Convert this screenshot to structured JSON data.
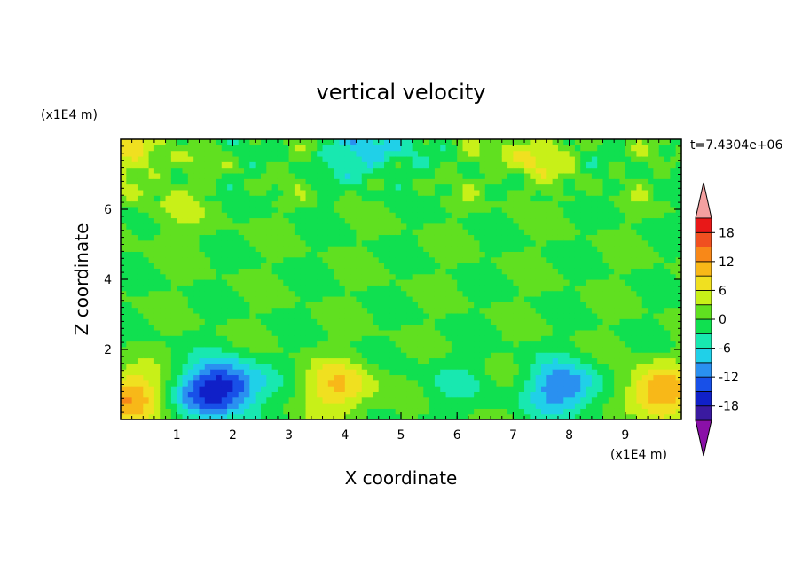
{
  "chart_data": {
    "type": "heatmap",
    "title": "vertical velocity",
    "xlabel": "X coordinate",
    "ylabel": "Z coordinate",
    "x_unit": "(x1E4 m)",
    "y_unit": "(x1E4 m)",
    "time_label": "t=7.4304e+06",
    "xlim": [
      0,
      10
    ],
    "ylim": [
      0,
      8
    ],
    "x_ticks": [
      1,
      2,
      3,
      4,
      5,
      6,
      7,
      8,
      9
    ],
    "y_ticks": [
      2,
      4,
      6
    ],
    "colorbar": {
      "levels": [
        -21,
        -18,
        -15,
        -12,
        -9,
        -6,
        -3,
        0,
        3,
        6,
        9,
        12,
        15,
        18,
        21
      ],
      "tick_labels": [
        "18",
        "12",
        "6",
        "0",
        "-6",
        "-12",
        "-18"
      ],
      "tick_values": [
        18,
        12,
        6,
        0,
        -6,
        -12,
        -18
      ],
      "colors": [
        "#8a10a8",
        "#3a1aa0",
        "#1020c8",
        "#1850e8",
        "#2a90f0",
        "#20d0e8",
        "#18e8b0",
        "#10e050",
        "#60e020",
        "#c8f018",
        "#f0e020",
        "#f8b818",
        "#f88818",
        "#f05020",
        "#e81818",
        "#f4a0a0"
      ],
      "extend": "both"
    },
    "features": [
      {
        "x": 0.1,
        "z": 0.7,
        "value": 12
      },
      {
        "x": 1.6,
        "z": 0.8,
        "value": -12
      },
      {
        "x": 2.0,
        "z": 1.0,
        "value": -9
      },
      {
        "x": 3.9,
        "z": 0.9,
        "value": 9
      },
      {
        "x": 5.9,
        "z": 1.0,
        "value": -3
      },
      {
        "x": 7.9,
        "z": 0.9,
        "value": -12
      },
      {
        "x": 9.6,
        "z": 0.8,
        "value": 12
      },
      {
        "x": 0.3,
        "z": 7.6,
        "value": 6
      },
      {
        "x": 4.4,
        "z": 7.7,
        "value": -9
      },
      {
        "x": 7.3,
        "z": 7.5,
        "value": 6
      },
      {
        "x": 0.9,
        "z": 6.0,
        "value": 3
      }
    ]
  }
}
